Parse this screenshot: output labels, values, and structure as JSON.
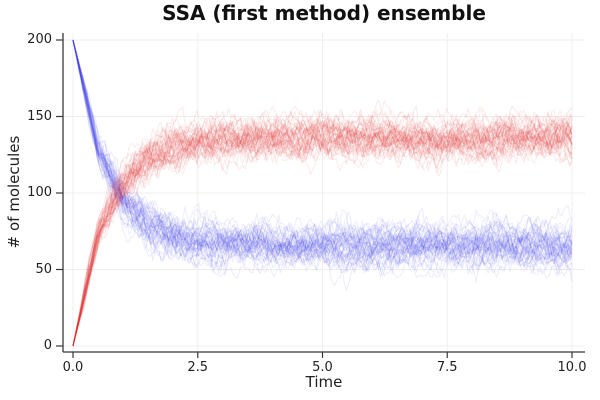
{
  "chart_data": {
    "type": "line",
    "subtype": "stochastic-ensemble",
    "title": "SSA (first method) ensemble",
    "xlabel": "Time",
    "ylabel": "# of molecules",
    "xlim": [
      0,
      10
    ],
    "ylim": [
      0,
      200
    ],
    "grid": true,
    "legend": "none",
    "xticks": {
      "values": [
        0,
        2.5,
        5,
        7.5,
        10
      ],
      "labels": [
        "0.0",
        "2.5",
        "5.0",
        "7.5",
        "10.0"
      ]
    },
    "yticks": {
      "values": [
        0,
        50,
        100,
        150,
        200
      ],
      "labels": [
        "0",
        "50",
        "100",
        "150",
        "200"
      ]
    },
    "colors": {
      "background": "#ffffff",
      "grid": "#efefef",
      "axis": "#383838",
      "tick_text": "#1f1f1f",
      "title_text": "#111111"
    },
    "series": [
      {
        "name": "decaying-species-blue",
        "color": "#4848e8",
        "line_alpha": 0.1,
        "line_width": 1,
        "n_trajectories": 50,
        "initial_value": 200,
        "equilibrium_value": 66,
        "mean_t": [
          0,
          0.5,
          1,
          1.5,
          2,
          2.5,
          3,
          3.5,
          4,
          4.5,
          5,
          5.5,
          6,
          6.5,
          7,
          7.5,
          8,
          8.5,
          9,
          9.5,
          10
        ],
        "mean_values": [
          200,
          128,
          95,
          79,
          72,
          69,
          67,
          67,
          66,
          66,
          66,
          66,
          66,
          66,
          66,
          66,
          66,
          66,
          66,
          66,
          66
        ],
        "noise": {
          "sd": 7,
          "ar": 0.88,
          "ramp_tau": 0.35
        },
        "seed": 20240601
      },
      {
        "name": "rising-species-red",
        "color": "#e63030",
        "line_alpha": 0.1,
        "line_width": 1,
        "n_trajectories": 50,
        "initial_value": 0,
        "equilibrium_value": 136,
        "mean_t": [
          0,
          0.5,
          1,
          1.5,
          2,
          2.5,
          3,
          3.5,
          4,
          4.5,
          5,
          5.5,
          6,
          6.5,
          7,
          7.5,
          8,
          8.5,
          9,
          9.5,
          10
        ],
        "mean_values": [
          0,
          73,
          107,
          123,
          130,
          133,
          135,
          135,
          136,
          136,
          136,
          136,
          136,
          136,
          136,
          136,
          136,
          136,
          136,
          136,
          136
        ],
        "noise": {
          "sd": 7,
          "ar": 0.88,
          "ramp_tau": 0.35
        },
        "seed": 777101
      }
    ]
  }
}
